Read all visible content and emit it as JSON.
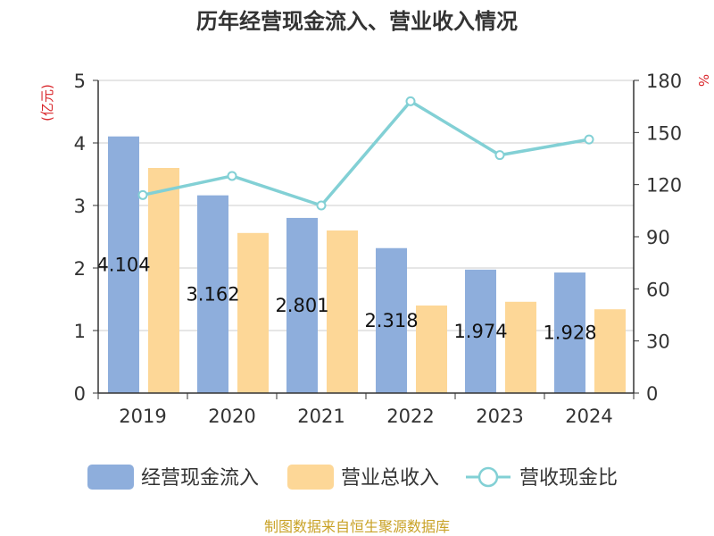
{
  "chart_data": {
    "type": "bar",
    "title": "历年经营现金流入、营业收入情况",
    "categories": [
      "2019",
      "2020",
      "2021",
      "2022",
      "2023",
      "2024"
    ],
    "y_left": {
      "unit_label": "(亿元)",
      "range": [
        0,
        5
      ],
      "ticks": [
        "0",
        "1",
        "2",
        "3",
        "4",
        "5"
      ]
    },
    "y_right": {
      "unit_label": "%",
      "range": [
        0,
        180
      ],
      "ticks": [
        "0",
        "30",
        "60",
        "90",
        "120",
        "150",
        "180"
      ]
    },
    "series": [
      {
        "name": "经营现金流入",
        "type": "bar",
        "axis": "left",
        "color": "#8eaedc",
        "values": [
          4.104,
          3.162,
          2.801,
          2.318,
          1.974,
          1.928
        ],
        "labels": [
          "4.104",
          "3.162",
          "2.801",
          "2.318",
          "1.974",
          "1.928"
        ]
      },
      {
        "name": "营业总收入",
        "type": "bar",
        "axis": "left",
        "color": "#fdd797",
        "values": [
          3.6,
          2.56,
          2.6,
          1.4,
          1.46,
          1.34
        ]
      },
      {
        "name": "营收现金比",
        "type": "line",
        "axis": "right",
        "color": "#82d0d5",
        "values": [
          114,
          125,
          108,
          168,
          137,
          146
        ]
      }
    ],
    "grid": true,
    "legend_position": "bottom"
  },
  "source": "制图数据来自恒生聚源数据库"
}
